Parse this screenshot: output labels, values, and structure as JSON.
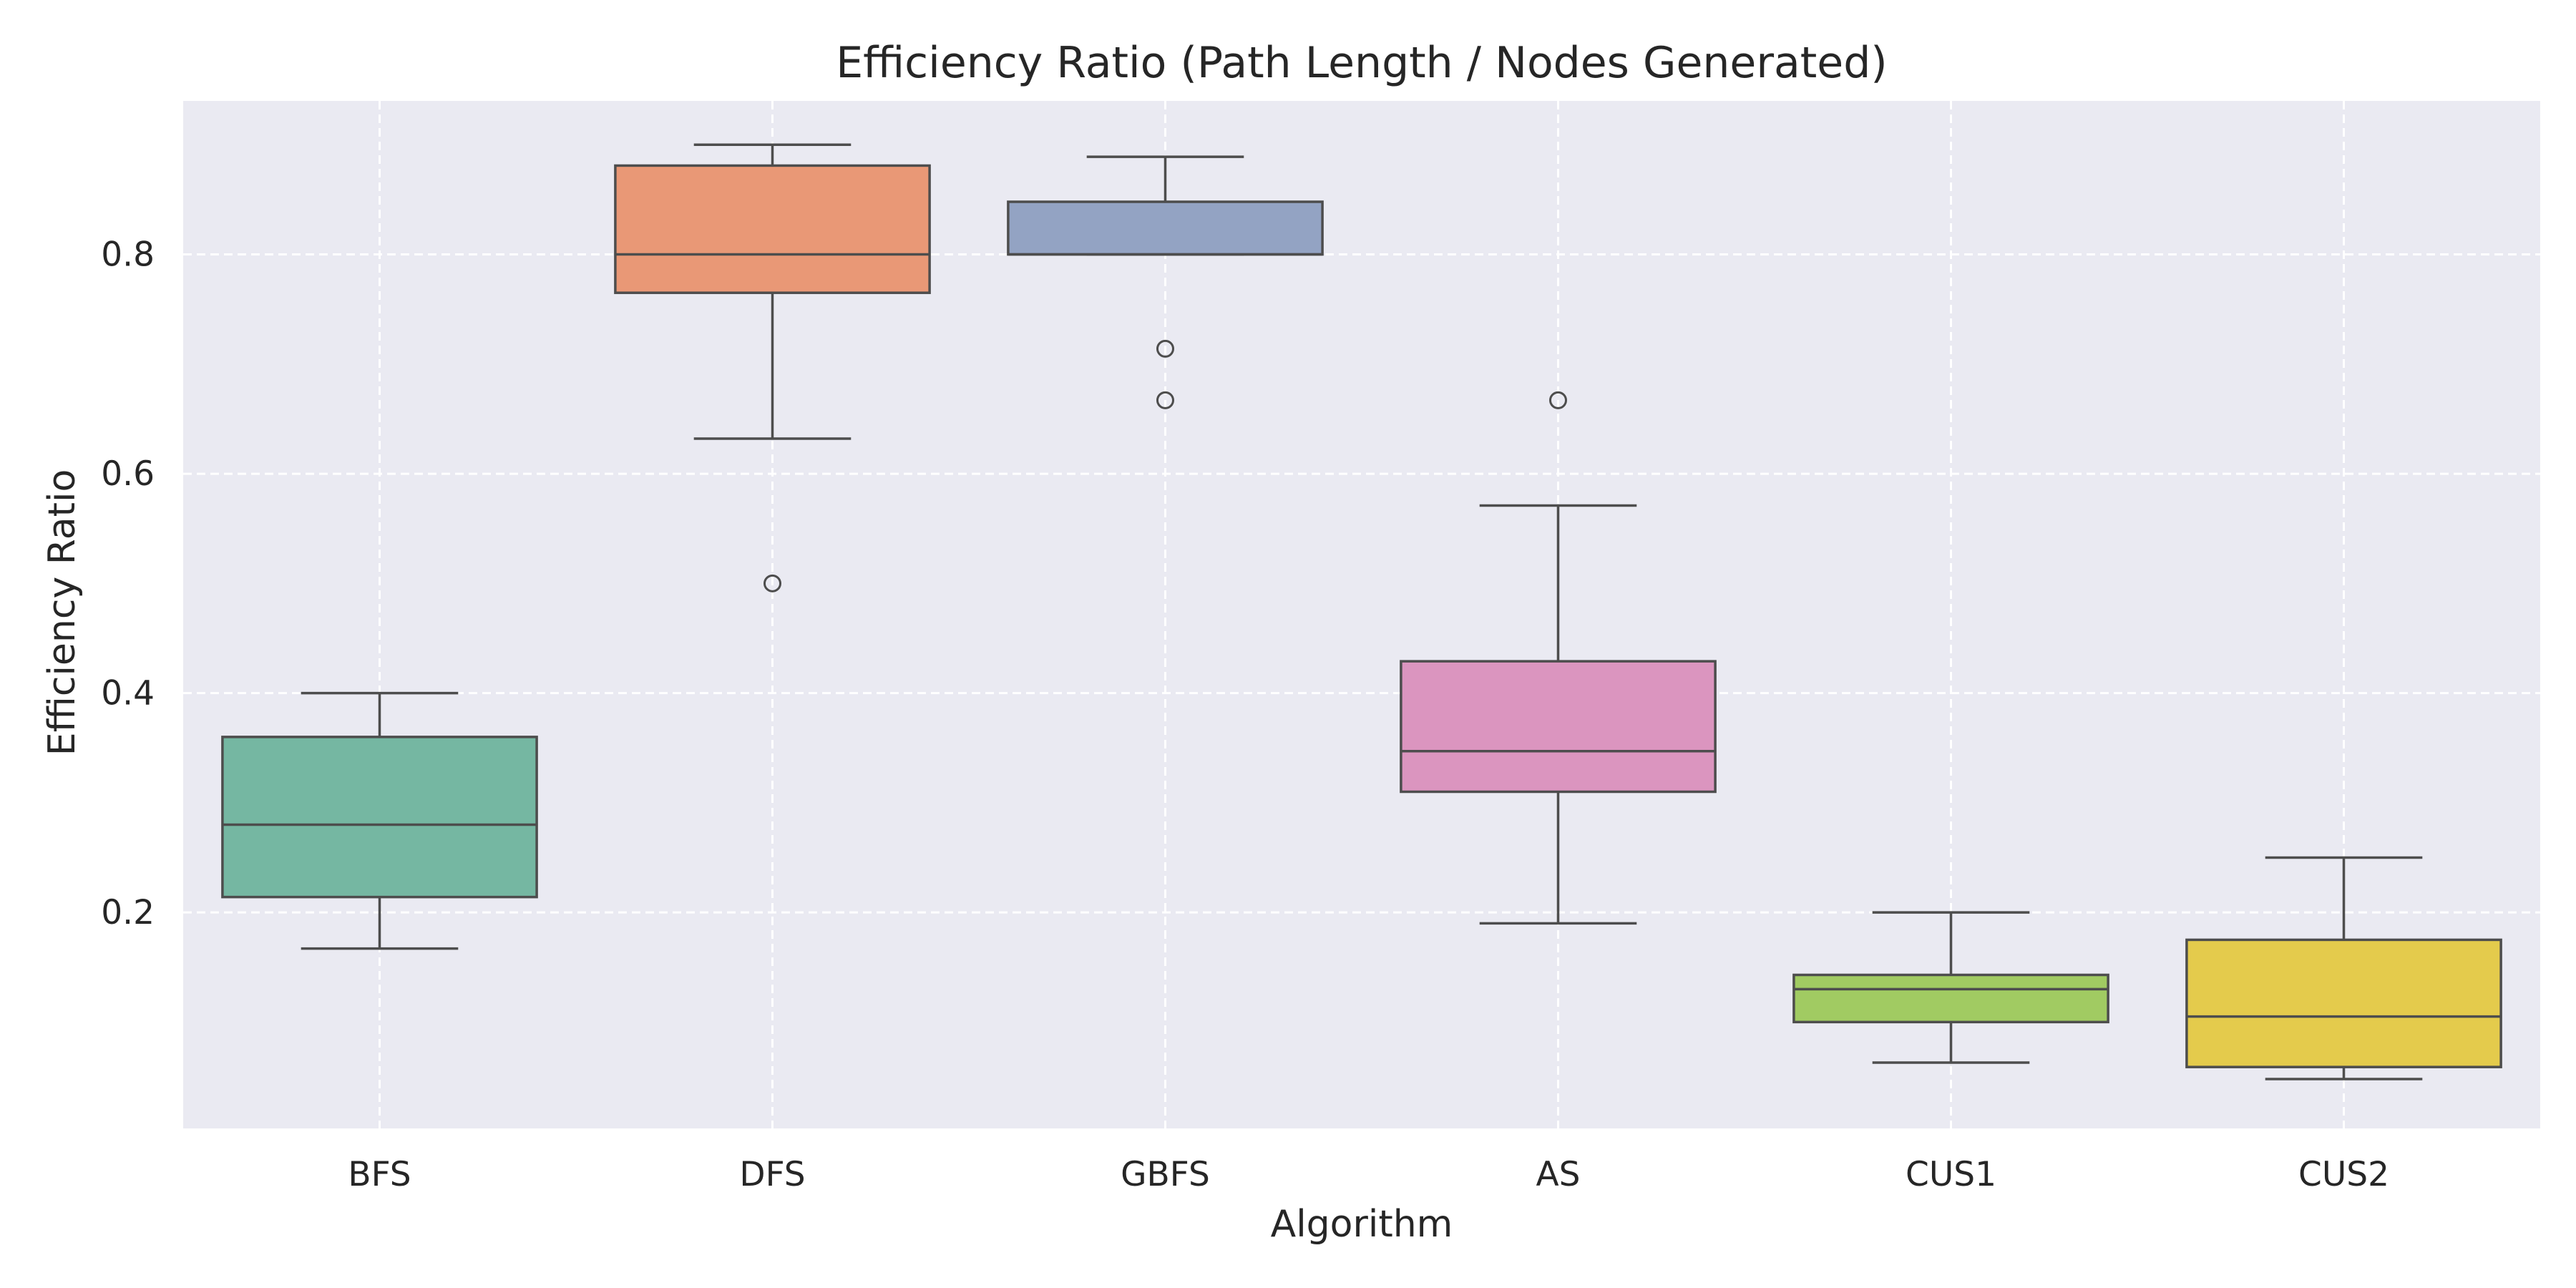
{
  "chart_data": {
    "type": "box",
    "title": "Efficiency Ratio (Path Length / Nodes Generated)",
    "xlabel": "Algorithm",
    "ylabel": "Efficiency Ratio",
    "ylim": [
      0.003,
      0.94
    ],
    "yticks": [
      0.2,
      0.4,
      0.6,
      0.8
    ],
    "ytick_labels": [
      "0.2",
      "0.4",
      "0.6",
      "0.8"
    ],
    "grid": true,
    "plot_background": "#EAEAF2",
    "grid_color": "#FFFFFF",
    "line_color": "#4D4D4D",
    "categories": [
      "BFS",
      "DFS",
      "GBFS",
      "AS",
      "CUS1",
      "CUS2"
    ],
    "boxes": [
      {
        "category": "BFS",
        "color": "#75B7A2",
        "whisker_low": 0.167,
        "q1": 0.214,
        "median": 0.28,
        "q3": 0.36,
        "whisker_high": 0.4,
        "outliers": []
      },
      {
        "category": "DFS",
        "color": "#E99876",
        "whisker_low": 0.632,
        "q1": 0.765,
        "median": 0.8,
        "q3": 0.881,
        "whisker_high": 0.9,
        "outliers": [
          0.5
        ]
      },
      {
        "category": "GBFS",
        "color": "#93A3C3",
        "whisker_low": 0.8,
        "q1": 0.8,
        "median": 0.8,
        "q3": 0.848,
        "whisker_high": 0.889,
        "outliers": [
          0.714,
          0.667
        ]
      },
      {
        "category": "AS",
        "color": "#DB95BF",
        "whisker_low": 0.19,
        "q1": 0.31,
        "median": 0.347,
        "q3": 0.429,
        "whisker_high": 0.571,
        "outliers": [
          0.667
        ]
      },
      {
        "category": "CUS1",
        "color": "#A1CB62",
        "whisker_low": 0.063,
        "q1": 0.1,
        "median": 0.13,
        "q3": 0.143,
        "whisker_high": 0.2,
        "outliers": []
      },
      {
        "category": "CUS2",
        "color": "#E4CB4C",
        "whisker_low": 0.048,
        "q1": 0.059,
        "median": 0.105,
        "q3": 0.175,
        "whisker_high": 0.25,
        "outliers": []
      }
    ]
  }
}
